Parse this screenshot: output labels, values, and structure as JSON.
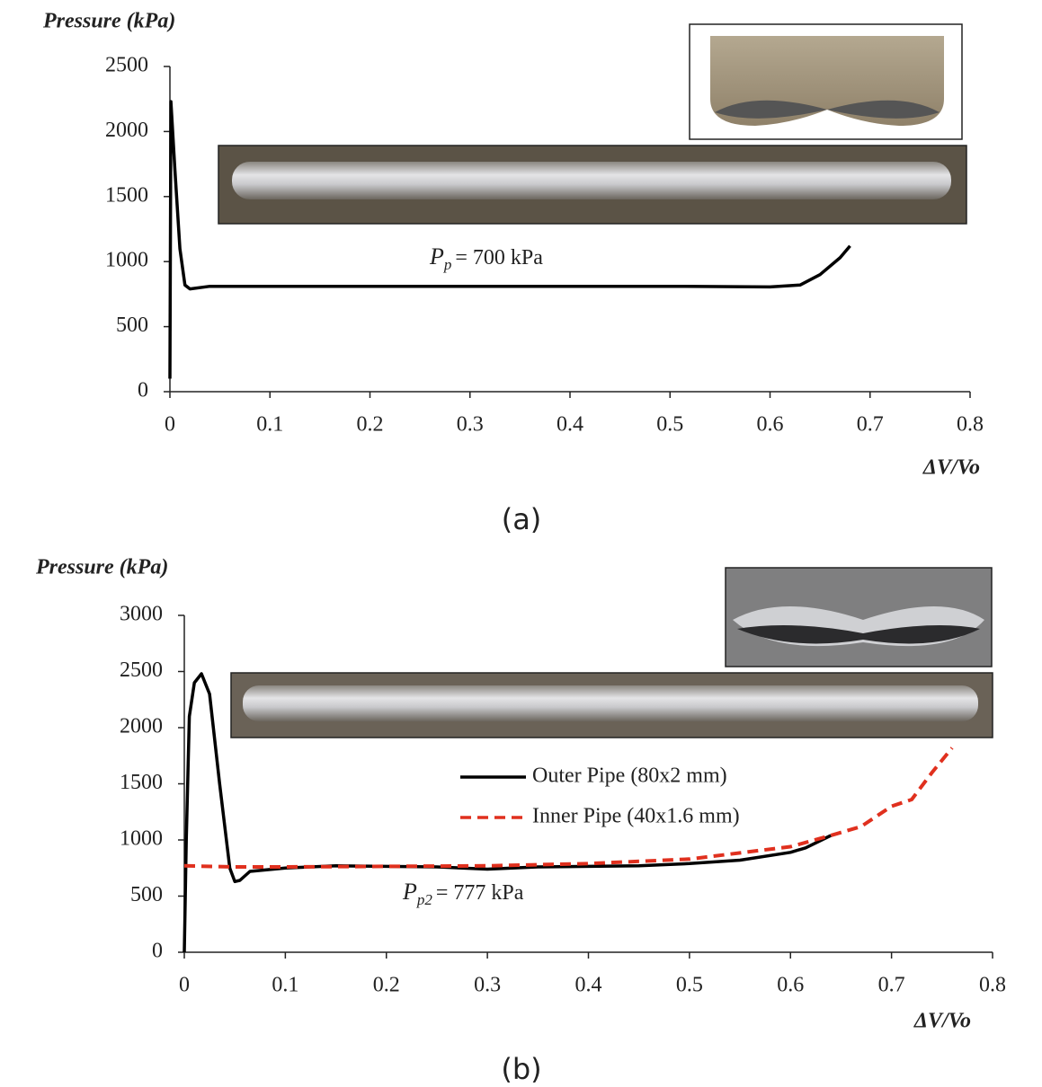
{
  "chart_data": [
    {
      "type": "line",
      "title": "Pressure (kPa)",
      "x_label": "ΔV/Vo",
      "caption": "(a)",
      "annotation": [
        "P",
        "p",
        "= 700 kPa"
      ],
      "x": [
        0,
        0.001,
        0.005,
        0.01,
        0.015,
        0.02,
        0.04,
        0.1,
        0.3,
        0.5,
        0.6,
        0.63,
        0.65,
        0.67,
        0.68
      ],
      "values": [
        100,
        2230,
        1700,
        1100,
        820,
        790,
        810,
        810,
        810,
        810,
        805,
        820,
        900,
        1030,
        1120
      ],
      "color": "#000000",
      "xlim": [
        0,
        0.8
      ],
      "xticks": [
        0,
        0.1,
        0.2,
        0.3,
        0.4,
        0.5,
        0.6,
        0.7,
        0.8
      ],
      "ylim": [
        0,
        2500
      ],
      "yticks": [
        0,
        500,
        1000,
        1500,
        2000,
        2500
      ]
    },
    {
      "type": "line",
      "title": "Pressure (kPa)",
      "x_label": "ΔV/Vo",
      "caption": "(b)",
      "annotation": [
        "P",
        "p2",
        "= 777 kPa"
      ],
      "legend": "center",
      "series": [
        {
          "name": "Outer Pipe (80x2 mm)",
          "color": "#000000",
          "linestyle": "solid",
          "x": [
            0,
            0.002,
            0.005,
            0.01,
            0.017,
            0.025,
            0.035,
            0.045,
            0.05,
            0.055,
            0.065,
            0.1,
            0.15,
            0.25,
            0.3,
            0.35,
            0.45,
            0.5,
            0.55,
            0.6,
            0.615,
            0.64
          ],
          "values": [
            0,
            1000,
            2100,
            2400,
            2480,
            2300,
            1500,
            750,
            630,
            640,
            720,
            750,
            770,
            760,
            740,
            760,
            770,
            790,
            820,
            890,
            930,
            1040
          ]
        },
        {
          "name": "Inner Pipe (40x1.6 mm)",
          "color": "#e0301e",
          "linestyle": "dashed",
          "x": [
            0,
            0.05,
            0.1,
            0.3,
            0.4,
            0.5,
            0.6,
            0.64,
            0.67,
            0.7,
            0.72,
            0.74,
            0.76
          ],
          "values": [
            770,
            760,
            760,
            770,
            790,
            830,
            940,
            1040,
            1120,
            1300,
            1360,
            1600,
            1820
          ]
        }
      ],
      "xlim": [
        0,
        0.8
      ],
      "xticks": [
        0,
        0.1,
        0.2,
        0.3,
        0.4,
        0.5,
        0.6,
        0.7,
        0.8
      ],
      "ylim": [
        0,
        3000
      ],
      "yticks": [
        0,
        500,
        1000,
        1500,
        2000,
        2500,
        3000
      ]
    }
  ]
}
